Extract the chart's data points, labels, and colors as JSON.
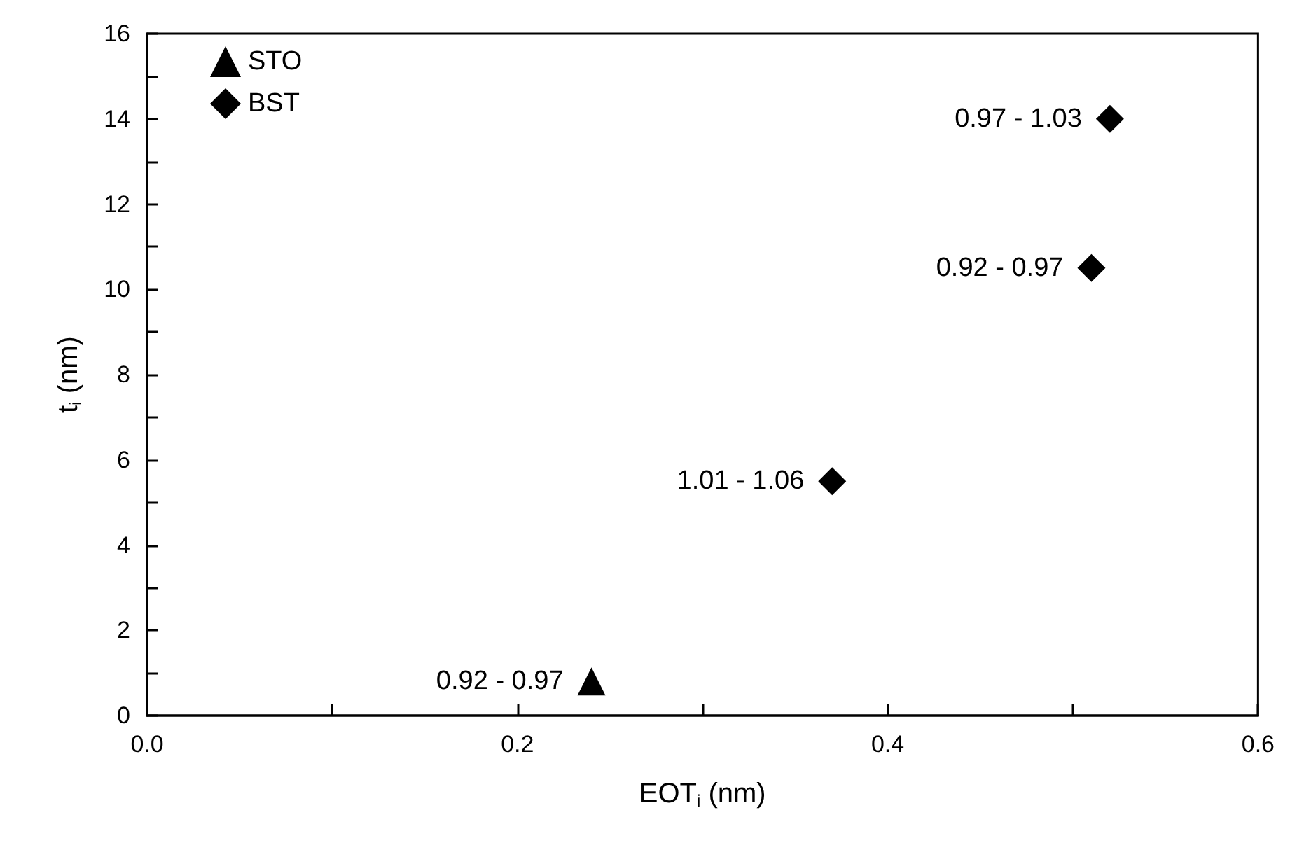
{
  "chart_data": {
    "type": "scatter",
    "xlabel": "EOT$_{i}$ (nm)",
    "ylabel": "t$_{i}$ (nm)",
    "xlim": [
      0,
      0.6
    ],
    "xticks": [
      {
        "value": 0,
        "label": "0.0"
      },
      {
        "value": 0.1,
        "label": null
      },
      0.2,
      {
        "value": 0.3,
        "label": null
      },
      0.4,
      {
        "value": 0.5,
        "label": null
      },
      0.6
    ],
    "ylim": [
      0,
      16
    ],
    "yticks": [
      0,
      {
        "value": 1,
        "label": null
      },
      2,
      {
        "value": 3,
        "label": null
      },
      4,
      {
        "value": 5,
        "label": null
      },
      6,
      {
        "value": 7,
        "label": null
      },
      8,
      {
        "value": 9,
        "label": null
      },
      10,
      {
        "value": 11,
        "label": null
      },
      12,
      {
        "value": 13,
        "label": null
      },
      14,
      {
        "value": 15,
        "label": null
      },
      16
    ],
    "grid": false,
    "legend": "top left",
    "series": [
      {
        "name": "STO",
        "color": "#000000",
        "marker": "triangle",
        "x": [
          0.24
        ],
        "values": [
          0.8
        ],
        "value_labels": [
          "0.92 - 0.97"
        ]
      },
      {
        "name": "BST",
        "color": "#000000",
        "marker": "diamond",
        "x": [
          0.37,
          0.51,
          0.52
        ],
        "values": [
          5.5,
          10.5,
          14
        ],
        "value_labels": [
          "1.01 - 1.06",
          "0.92 - 0.97",
          "0.97 - 1.03"
        ]
      }
    ]
  }
}
